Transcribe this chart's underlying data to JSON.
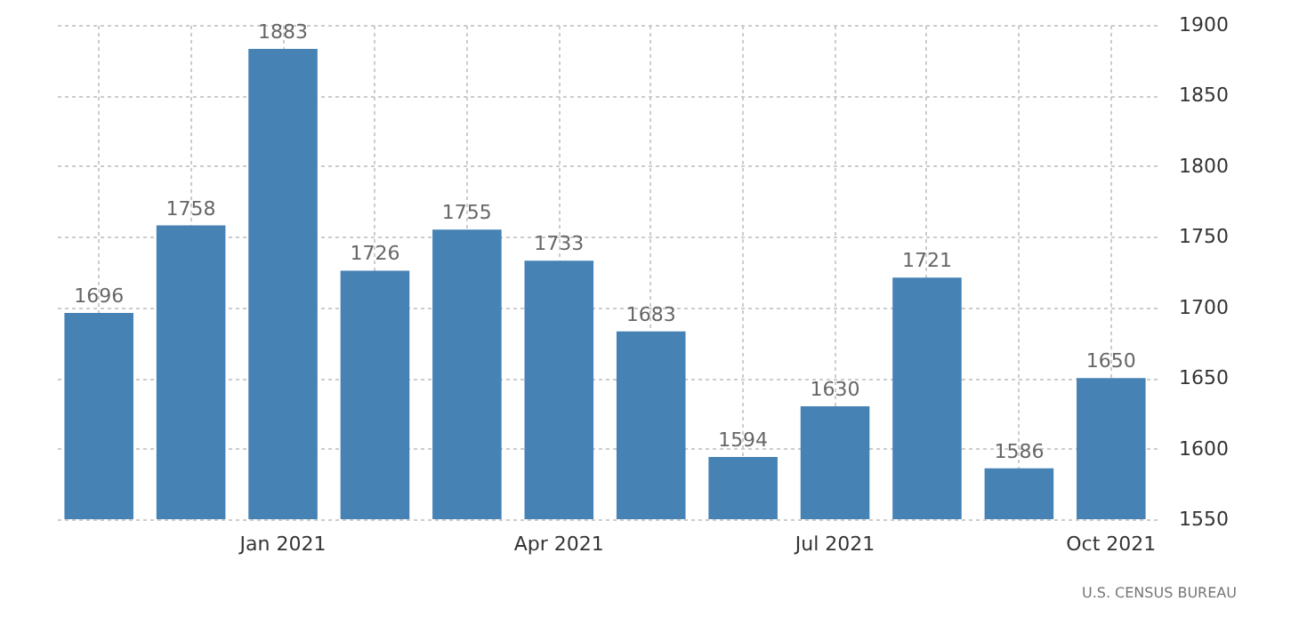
{
  "chart_data": {
    "type": "bar",
    "categories": [
      null,
      null,
      "Jan 2021",
      null,
      null,
      "Apr 2021",
      null,
      null,
      "Jul 2021",
      null,
      null,
      "Oct 2021"
    ],
    "values": [
      1696,
      1758,
      1883,
      1726,
      1755,
      1733,
      1683,
      1594,
      1630,
      1721,
      1586,
      1650
    ],
    "color": "#4682b4",
    "ylim": [
      1550,
      1900
    ],
    "yticks": [
      1550,
      1600,
      1650,
      1700,
      1750,
      1800,
      1850,
      1900
    ],
    "grid": true,
    "data_labels": true,
    "annotations": [
      "U.S. CENSUS BUREAU"
    ]
  }
}
